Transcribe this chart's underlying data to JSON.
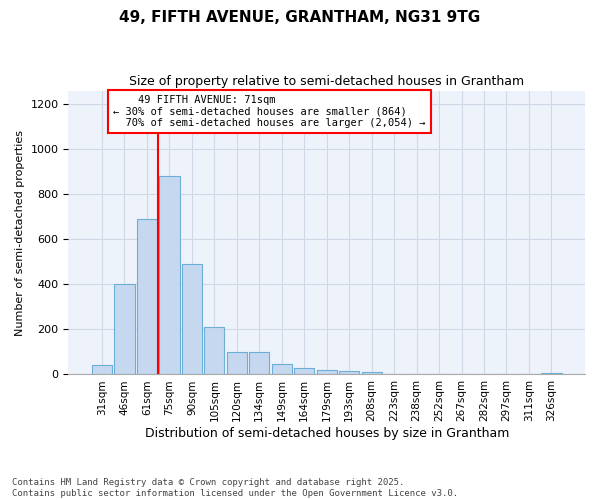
{
  "title_line1": "49, FIFTH AVENUE, GRANTHAM, NG31 9TG",
  "title_line2": "Size of property relative to semi-detached houses in Grantham",
  "xlabel": "Distribution of semi-detached houses by size in Grantham",
  "ylabel": "Number of semi-detached properties",
  "bin_labels": [
    "31sqm",
    "46sqm",
    "61sqm",
    "75sqm",
    "90sqm",
    "105sqm",
    "120sqm",
    "134sqm",
    "149sqm",
    "164sqm",
    "179sqm",
    "193sqm",
    "208sqm",
    "223sqm",
    "238sqm",
    "252sqm",
    "267sqm",
    "282sqm",
    "297sqm",
    "311sqm",
    "326sqm"
  ],
  "bar_values": [
    40,
    400,
    690,
    880,
    490,
    210,
    100,
    100,
    45,
    30,
    20,
    15,
    10,
    0,
    0,
    0,
    0,
    0,
    0,
    0,
    5
  ],
  "bar_color": "#c5d8f0",
  "bar_edge_color": "#6baed6",
  "vline_color": "red",
  "property_label": "49 FIFTH AVENUE: 71sqm",
  "pct_smaller": "30%",
  "pct_larger": "70%",
  "count_smaller": "864",
  "count_larger": "2,054",
  "ylim": [
    0,
    1260
  ],
  "yticks": [
    0,
    200,
    400,
    600,
    800,
    1000,
    1200
  ],
  "grid_color": "#d0d8e8",
  "background_color": "#eef2fb",
  "footnote_line1": "Contains HM Land Registry data © Crown copyright and database right 2025.",
  "footnote_line2": "Contains public sector information licensed under the Open Government Licence v3.0."
}
